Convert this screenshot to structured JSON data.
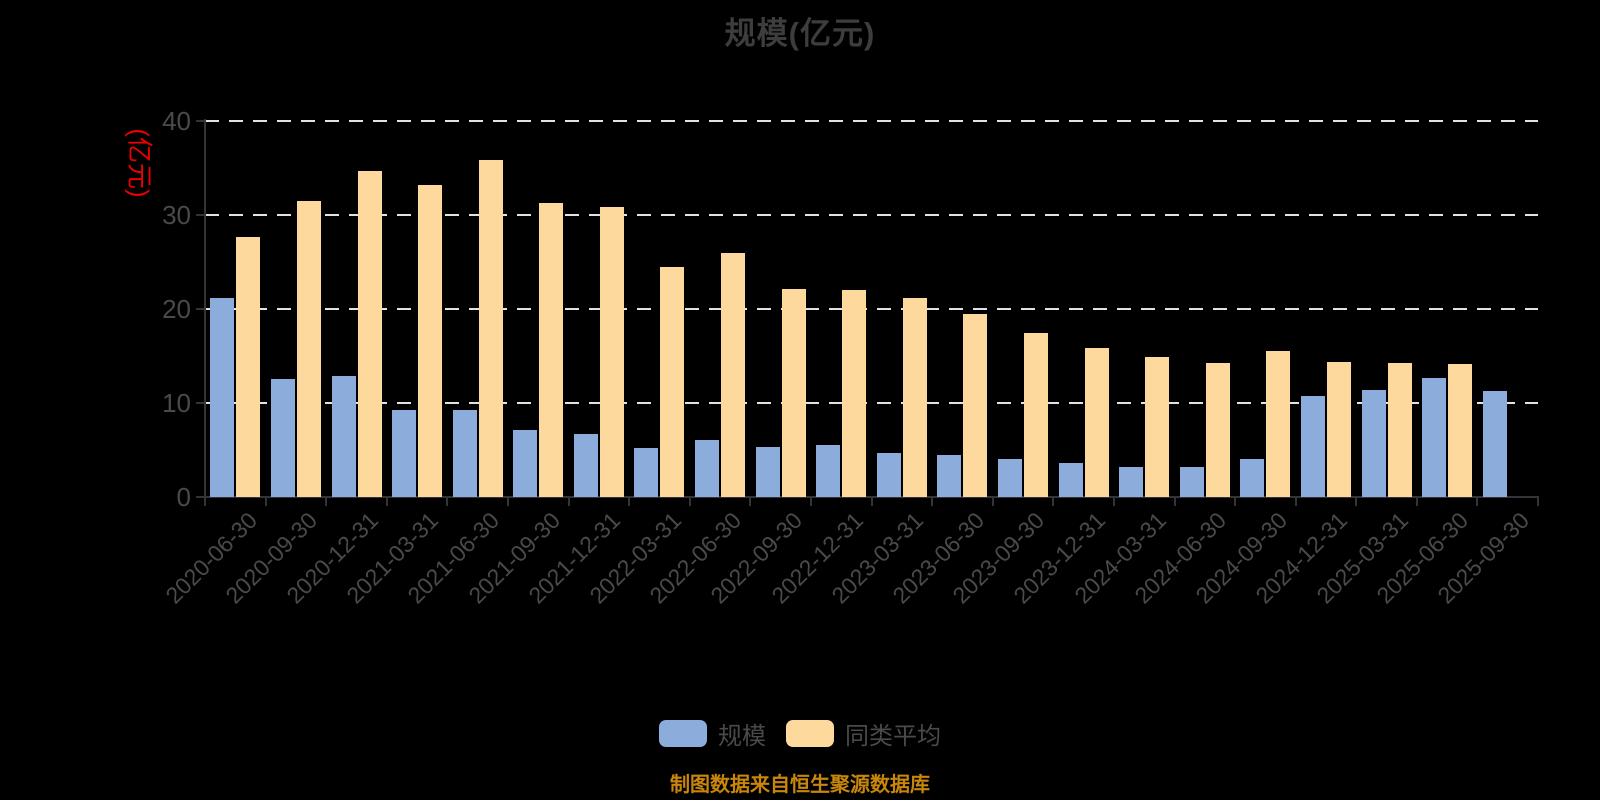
{
  "title": "规模(亿元)",
  "y_axis_name": "(亿元)",
  "footer": "制图数据来自恒生聚源数据库",
  "legend": [
    {
      "label": "规模",
      "color": "#8caddc"
    },
    {
      "label": "同类平均",
      "color": "#fdd99e"
    }
  ],
  "colors": {
    "background": "#000000",
    "title_text": "#3d3d3d",
    "tick_text": "#4a4a4a",
    "axis_line": "#333338",
    "gridline": "#e2e2e2",
    "series_scale": "#8caddc",
    "series_average": "#fdd99e",
    "y_axis_name_red": "#e60000",
    "footer_gold": "#c8860b"
  },
  "chart_data": {
    "type": "bar",
    "title": "规模(亿元)",
    "ylabel": "(亿元)",
    "ylim": [
      0,
      40
    ],
    "yticks": [
      0,
      10,
      20,
      30,
      40
    ],
    "grid": "dashed-horizontal",
    "legend_position": "bottom-center",
    "categories": [
      "2020-06-30",
      "2020-09-30",
      "2020-12-31",
      "2021-03-31",
      "2021-06-30",
      "2021-09-30",
      "2021-12-31",
      "2022-03-31",
      "2022-06-30",
      "2022-09-30",
      "2022-12-31",
      "2023-03-31",
      "2023-06-30",
      "2023-09-30",
      "2023-12-31",
      "2024-03-31",
      "2024-06-30",
      "2024-09-30",
      "2024-12-31",
      "2025-03-31",
      "2025-06-30",
      "2025-09-30"
    ],
    "series": [
      {
        "name": "规模",
        "key": "scale",
        "color": "#8caddc",
        "values": [
          21.2,
          12.5,
          12.9,
          9.3,
          9.2,
          7.1,
          6.7,
          5.2,
          6.1,
          5.3,
          5.5,
          4.7,
          4.5,
          4.0,
          3.6,
          3.2,
          3.2,
          4.0,
          10.7,
          11.4,
          12.7,
          11.3
        ]
      },
      {
        "name": "同类平均",
        "key": "average",
        "color": "#fdd99e",
        "values": [
          27.6,
          31.4,
          34.6,
          33.2,
          35.8,
          31.2,
          30.8,
          24.4,
          25.9,
          22.1,
          22.0,
          21.1,
          19.4,
          17.4,
          15.8,
          14.9,
          14.2,
          15.5,
          14.3,
          14.2,
          14.1,
          null
        ]
      }
    ]
  }
}
